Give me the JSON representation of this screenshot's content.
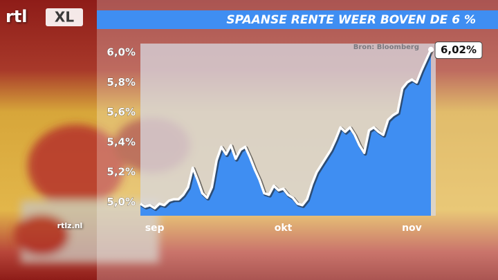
{
  "logo": {
    "brand": "rtl",
    "product": "XL"
  },
  "website": "rtlz.nl",
  "chart_data": {
    "type": "area",
    "title": "SPAANSE RENTE WEER BOVEN DE 6 %",
    "source": "Bron: Bloomberg",
    "categories": [
      null,
      null,
      null,
      "sep",
      null,
      null,
      null,
      null,
      null,
      null,
      null,
      null,
      null,
      null,
      null,
      null,
      null,
      null,
      null,
      null,
      null,
      null,
      null,
      null,
      null,
      null,
      null,
      null,
      null,
      null,
      "okt",
      null,
      null,
      null,
      null,
      null,
      null,
      null,
      null,
      null,
      null,
      null,
      null,
      null,
      null,
      null,
      null,
      null,
      null,
      null,
      null,
      null,
      null,
      null,
      null,
      null,
      null,
      "nov",
      null,
      null,
      null,
      null
    ],
    "values": [
      4.99,
      4.97,
      4.98,
      4.96,
      4.99,
      4.98,
      5.01,
      5.02,
      5.02,
      5.05,
      5.1,
      5.23,
      5.15,
      5.06,
      5.03,
      5.1,
      5.28,
      5.37,
      5.32,
      5.38,
      5.29,
      5.35,
      5.37,
      5.3,
      5.22,
      5.15,
      5.06,
      5.05,
      5.11,
      5.08,
      5.09,
      5.05,
      5.03,
      4.99,
      4.98,
      5.02,
      5.12,
      5.2,
      5.25,
      5.3,
      5.35,
      5.42,
      5.5,
      5.47,
      5.5,
      5.45,
      5.38,
      5.33,
      5.48,
      5.5,
      5.47,
      5.45,
      5.55,
      5.58,
      5.6,
      5.76,
      5.8,
      5.82,
      5.8,
      5.88,
      5.95,
      6.02
    ],
    "value_labels": [
      null,
      null,
      null,
      null,
      null,
      null,
      null,
      null,
      null,
      null,
      null,
      null,
      null,
      null,
      null,
      null,
      null,
      null,
      null,
      null,
      null,
      null,
      null,
      null,
      null,
      null,
      null,
      null,
      null,
      null,
      null,
      null,
      null,
      null,
      null,
      null,
      null,
      null,
      null,
      null,
      null,
      null,
      null,
      null,
      null,
      null,
      null,
      null,
      null,
      null,
      null,
      null,
      null,
      null,
      null,
      null,
      null,
      null,
      null,
      null,
      null,
      "6,02%"
    ],
    "color": "#3f8ef2",
    "line_color": "#ffffff",
    "ylim": [
      4.91,
      6.06
    ],
    "yticks": [
      {
        "value": 5.0,
        "label": "5,0%"
      },
      {
        "value": 5.2,
        "label": "5,2%"
      },
      {
        "value": 5.4,
        "label": "5,4%"
      },
      {
        "value": 5.6,
        "label": "5,6%"
      },
      {
        "value": 5.8,
        "label": "5,8%"
      },
      {
        "value": 6.0,
        "label": "6,0%"
      }
    ],
    "grid": false
  }
}
